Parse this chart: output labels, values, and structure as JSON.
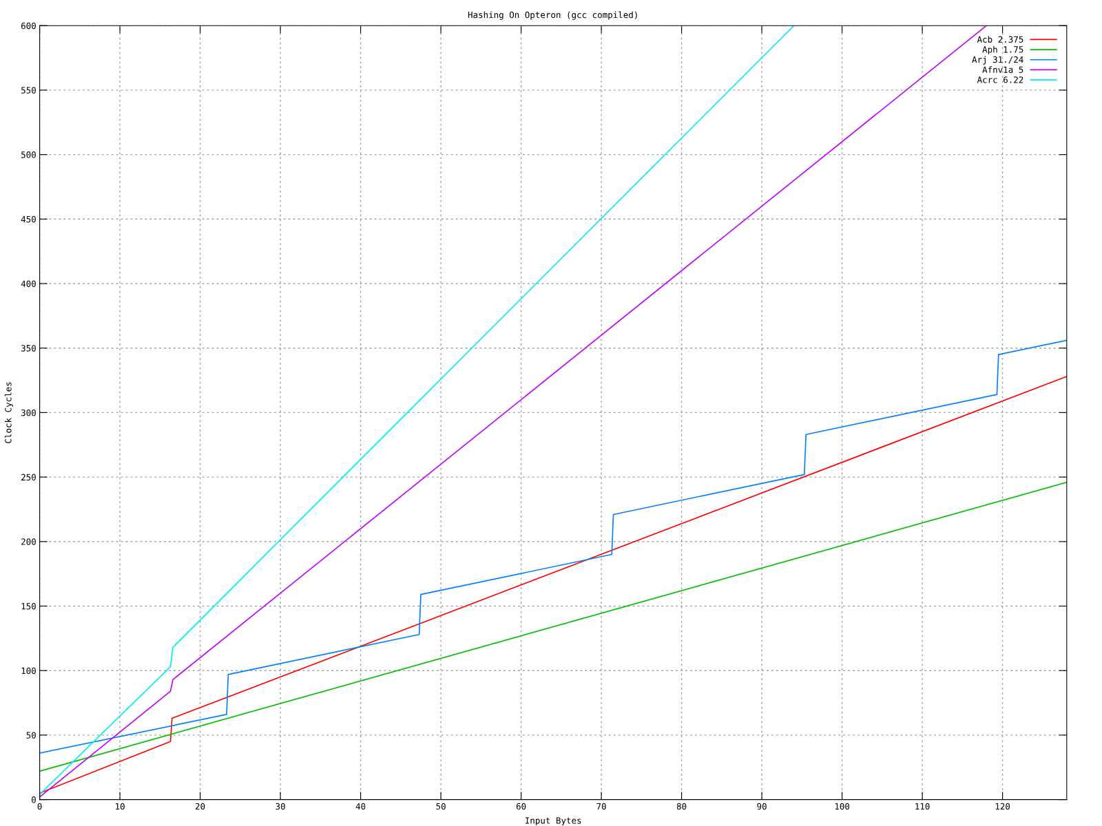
{
  "chart_data": {
    "type": "line",
    "title": "Hashing On Opteron (gcc compiled)",
    "xlabel": "Input Bytes",
    "ylabel": "Clock Cycles",
    "xlim": [
      0,
      128
    ],
    "ylim": [
      0,
      600
    ],
    "xticks": [
      0,
      10,
      20,
      30,
      40,
      50,
      60,
      70,
      80,
      90,
      100,
      110,
      120
    ],
    "yticks": [
      0,
      50,
      100,
      150,
      200,
      250,
      300,
      350,
      400,
      450,
      500,
      550,
      600
    ],
    "grid": true,
    "legend": "top right",
    "line_style": "solid",
    "marker": "none",
    "series": [
      {
        "name": "Acb 2.375",
        "color": "#ff0000",
        "x": [
          0,
          16.3,
          16.5,
          128
        ],
        "values": [
          5,
          45,
          63,
          328
        ]
      },
      {
        "name": "Aph 1.75",
        "color": "#00c000",
        "x": [
          0,
          128
        ],
        "values": [
          22,
          246
        ]
      },
      {
        "name": "Arj 31./24",
        "color": "#0080ff",
        "x": [
          0,
          23.3,
          23.5,
          47.3,
          47.5,
          71.3,
          71.5,
          95.3,
          95.5,
          119.3,
          119.5,
          128
        ],
        "values": [
          36,
          66,
          97,
          128,
          159,
          190,
          221,
          252,
          283,
          314,
          345,
          356
        ]
      },
      {
        "name": "Afnv1a 5",
        "color": "#c000ff",
        "x": [
          0,
          16.3,
          16.6,
          118
        ],
        "values": [
          2,
          84,
          93,
          600
        ]
      },
      {
        "name": "Acrc 6.22",
        "color": "#00eeee",
        "x": [
          0,
          16.3,
          16.6,
          94
        ],
        "values": [
          4,
          103,
          118,
          600
        ]
      }
    ]
  }
}
